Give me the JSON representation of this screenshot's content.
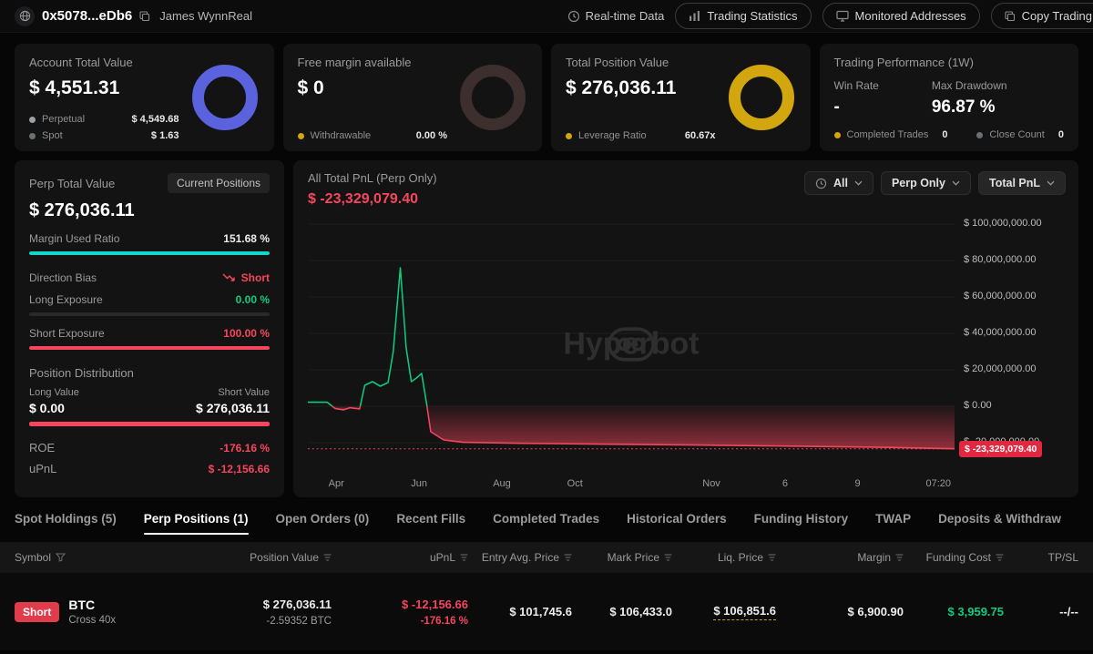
{
  "topbar": {
    "address": "0x5078...eDb6",
    "username": "James WynnReal",
    "realtime_label": "Real-time Data",
    "nav": [
      {
        "label": "Trading Statistics",
        "icon": "bar-chart-icon"
      },
      {
        "label": "Monitored Addresses",
        "icon": "monitor-icon"
      },
      {
        "label": "Copy Trading",
        "icon": "copy-icon"
      }
    ]
  },
  "cards": {
    "account": {
      "title": "Account Total Value",
      "value": "$ 4,551.31",
      "donut_color": "#5a63dd",
      "legend": [
        {
          "label": "Perpetual",
          "value": "$ 4,549.68",
          "dot": "#9aa0a6"
        },
        {
          "label": "Spot",
          "value": "$ 1.63",
          "dot": "#6b7076"
        }
      ]
    },
    "free_margin": {
      "title": "Free margin available",
      "value": "$ 0",
      "donut_color": "#3c2f2d",
      "legend": [
        {
          "label": "Withdrawable",
          "value": "0.00 %",
          "dot": "#d4a411"
        }
      ]
    },
    "position_value": {
      "title": "Total Position Value",
      "value": "$ 276,036.11",
      "donut_color": "#d2a60e",
      "legend": [
        {
          "label": "Leverage Ratio",
          "value": "60.67x",
          "dot": "#d4a411"
        }
      ]
    },
    "performance": {
      "title": "Trading Performance (1W)",
      "stats": [
        {
          "label": "Win Rate",
          "value": "-"
        },
        {
          "label": "Max Drawdown",
          "value": "96.87 %"
        }
      ],
      "legend": [
        {
          "label": "Completed Trades",
          "value": "0",
          "dot": "#d4a411"
        },
        {
          "label": "Close Count",
          "value": "0",
          "dot": "#6b7076"
        }
      ]
    }
  },
  "perp_panel": {
    "title": "Perp Total Value",
    "badge": "Current Positions",
    "value": "$ 276,036.11",
    "margin_used": {
      "label": "Margin Used Ratio",
      "value": "151.68 %",
      "pct": 100,
      "color": "#13d6cb"
    },
    "direction": {
      "label": "Direction Bias",
      "value": "Short"
    },
    "long_exposure": {
      "label": "Long Exposure",
      "value": "0.00 %",
      "pct": 0,
      "color": "#0ecb81"
    },
    "short_exposure": {
      "label": "Short Exposure",
      "value": "100.00 %",
      "pct": 100,
      "color": "#f6465d"
    },
    "distribution": {
      "title": "Position Distribution",
      "long_label": "Long Value",
      "short_label": "Short Value",
      "long_value": "$ 0.00",
      "short_value": "$ 276,036.11",
      "short_pct": 100,
      "color": "#f6465d"
    },
    "roe": {
      "label": "ROE",
      "value": "-176.16 %"
    },
    "upnl": {
      "label": "uPnL",
      "value": "$ -12,156.66"
    }
  },
  "chart_panel": {
    "title": "All Total PnL (Perp Only)",
    "value": "$ -23,329,079.40",
    "filters": [
      {
        "label": "All"
      },
      {
        "label": "Perp Only"
      },
      {
        "label": "Total PnL"
      }
    ],
    "watermark": "Hyperbot"
  },
  "chart_data": {
    "type": "area",
    "title": "All Total PnL (Perp Only)",
    "unit": "USD (millions)",
    "ylim": [
      -36,
      104
    ],
    "current_value": -23.329,
    "current_label": "$ -23,329,079.40",
    "colors": {
      "positive": "#0ecb81",
      "negative": "#f6465d"
    },
    "legend_position": "none",
    "grid": true,
    "y_ticks": [
      {
        "label": "$ 100,000,000.00",
        "value": 100
      },
      {
        "label": "$ 80,000,000.00",
        "value": 80
      },
      {
        "label": "$ 60,000,000.00",
        "value": 60
      },
      {
        "label": "$ 40,000,000.00",
        "value": 40
      },
      {
        "label": "$ 20,000,000.00",
        "value": 20
      },
      {
        "label": "$ 0.00",
        "value": 0
      },
      {
        "label": "$ -20,000,000.00",
        "value": -20
      }
    ],
    "x_ticks": [
      {
        "label": "Apr",
        "pos": 0.044
      },
      {
        "label": "Jun",
        "pos": 0.172
      },
      {
        "label": "Aug",
        "pos": 0.3
      },
      {
        "label": "Oct",
        "pos": 0.413
      },
      {
        "label": "Nov",
        "pos": 0.624
      },
      {
        "label": "6",
        "pos": 0.738
      },
      {
        "label": "9",
        "pos": 0.85
      },
      {
        "label": "07:20",
        "pos": 0.975
      }
    ],
    "points": [
      [
        0.0,
        2.2
      ],
      [
        0.03,
        2.2
      ],
      [
        0.042,
        -1.2
      ],
      [
        0.055,
        -2.0
      ],
      [
        0.065,
        -0.8
      ],
      [
        0.08,
        -1.5
      ],
      [
        0.088,
        11.5
      ],
      [
        0.1,
        13.5
      ],
      [
        0.112,
        11.0
      ],
      [
        0.124,
        13.0
      ],
      [
        0.132,
        30.0
      ],
      [
        0.143,
        76.0
      ],
      [
        0.152,
        32.0
      ],
      [
        0.16,
        13.5
      ],
      [
        0.168,
        15.5
      ],
      [
        0.176,
        18.0
      ],
      [
        0.184,
        0.5
      ],
      [
        0.19,
        -14.0
      ],
      [
        0.21,
        -18.5
      ],
      [
        0.24,
        -19.8
      ],
      [
        0.32,
        -20.3
      ],
      [
        0.45,
        -20.8
      ],
      [
        0.6,
        -21.3
      ],
      [
        0.75,
        -21.9
      ],
      [
        0.9,
        -22.6
      ],
      [
        1.0,
        -23.329
      ]
    ]
  },
  "tabs": [
    {
      "label": "Spot Holdings (5)",
      "active": false
    },
    {
      "label": "Perp Positions (1)",
      "active": true
    },
    {
      "label": "Open Orders (0)",
      "active": false
    },
    {
      "label": "Recent Fills",
      "active": false
    },
    {
      "label": "Completed Trades",
      "active": false
    },
    {
      "label": "Historical Orders",
      "active": false
    },
    {
      "label": "Funding History",
      "active": false
    },
    {
      "label": "TWAP",
      "active": false
    },
    {
      "label": "Deposits & Withdraw",
      "active": false
    }
  ],
  "table": {
    "columns": [
      "Symbol",
      "Position Value",
      "uPnL",
      "Entry Avg. Price",
      "Mark Price",
      "Liq. Price",
      "Margin",
      "Funding Cost",
      "TP/SL"
    ],
    "row": {
      "side": "Short",
      "symbol": "BTC",
      "leverage": "Cross 40x",
      "position_value": "$ 276,036.11",
      "position_size": "-2.59352 BTC",
      "upnl": "$ -12,156.66",
      "upnl_pct": "-176.16 %",
      "entry_price": "$ 101,745.6",
      "mark_price": "$ 106,433.0",
      "liq_price": "$ 106,851.6",
      "margin": "$ 6,900.90",
      "funding_cost": "$ 3,959.75",
      "tpsl": "--/--"
    }
  }
}
